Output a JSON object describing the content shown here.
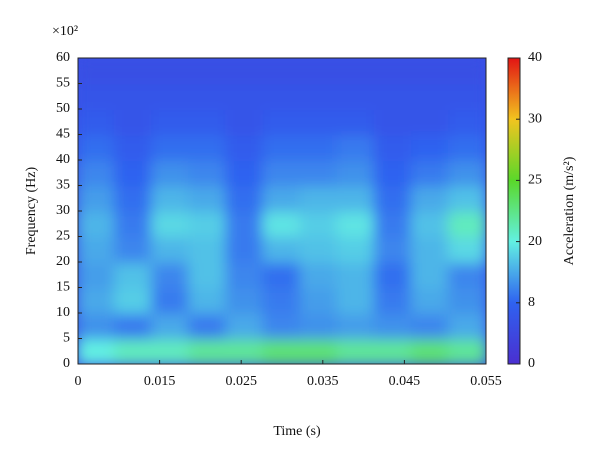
{
  "chart_data": {
    "type": "heatmap",
    "x_label": "Time (s)",
    "y_label": "Frequency (Hz)",
    "y_multiplier": "×10²",
    "colorbar_label": "Acceleration (m/s²)",
    "xticks": [
      0,
      0.015,
      0.025,
      0.035,
      0.045,
      0.055
    ],
    "ylim": [
      0,
      60
    ],
    "yticks": [
      0,
      5,
      10,
      15,
      20,
      25,
      30,
      35,
      40,
      45,
      50,
      55,
      60
    ],
    "cticks": [
      0,
      8,
      20,
      25,
      30,
      40
    ],
    "colors": [
      "#4a2fd0",
      "#2f62f0",
      "#62f0e2",
      "#5ad82a",
      "#f2c41f",
      "#e21414"
    ],
    "z": [
      [
        20,
        21,
        21,
        22,
        22,
        23,
        23,
        22,
        22,
        23,
        22
      ],
      [
        12,
        10,
        14,
        10,
        14,
        11,
        12,
        13,
        12,
        11,
        14
      ],
      [
        14,
        17,
        10,
        15,
        12,
        10,
        13,
        15,
        10,
        14,
        12
      ],
      [
        13,
        16,
        11,
        16,
        11,
        9,
        14,
        15,
        9,
        15,
        11
      ],
      [
        14,
        11,
        15,
        16,
        10,
        15,
        16,
        17,
        11,
        15,
        18
      ],
      [
        15,
        10,
        18,
        17,
        10,
        19,
        17,
        19,
        10,
        16,
        21
      ],
      [
        13,
        9,
        15,
        14,
        9,
        14,
        15,
        15,
        9,
        14,
        16
      ],
      [
        11,
        8,
        12,
        11,
        8,
        11,
        11,
        12,
        8,
        10,
        12
      ],
      [
        9,
        7,
        9,
        9,
        7,
        9,
        9,
        10,
        7,
        8,
        9
      ],
      [
        7,
        6,
        7,
        7,
        6,
        7,
        7,
        7,
        6,
        6,
        7
      ],
      [
        6,
        6,
        6,
        6,
        6,
        6,
        6,
        6,
        6,
        6,
        6
      ],
      [
        5,
        5,
        5,
        5,
        5,
        5,
        5,
        5,
        5,
        5,
        5
      ]
    ]
  }
}
